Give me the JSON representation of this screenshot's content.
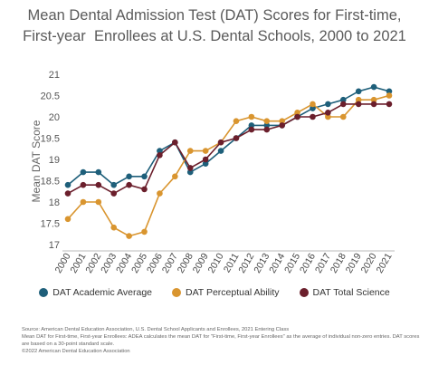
{
  "chart_data": {
    "type": "line",
    "title_lines": [
      "Mean Dental Admission Test (DAT) Scores for First-time,",
      "First-year  Enrollees at U.S. Dental Schools, 2000 to 2021"
    ],
    "xlabel": "",
    "ylabel": "Mean DAT Score",
    "ylim": [
      17,
      21
    ],
    "yticks": [
      "17",
      "17.5",
      "18",
      "18.5",
      "19",
      "19.5",
      "20",
      "20.5",
      "21"
    ],
    "categories": [
      "2000",
      "2001",
      "2002",
      "2003",
      "2004",
      "2005",
      "2006",
      "2007",
      "2008",
      "2009",
      "2010",
      "2011",
      "2012",
      "2013",
      "2014",
      "2015",
      "2016",
      "2017",
      "2018",
      "2019",
      "2020",
      "2021"
    ],
    "grid": false,
    "legend_position": "bottom",
    "series": [
      {
        "name": "DAT Academic Average",
        "color": "#1e5f7a",
        "values": [
          18.4,
          18.7,
          18.7,
          18.4,
          18.6,
          18.6,
          19.2,
          19.4,
          18.7,
          18.9,
          19.2,
          19.5,
          19.8,
          19.8,
          19.8,
          20.0,
          20.2,
          20.3,
          20.4,
          20.6,
          20.7,
          20.6
        ]
      },
      {
        "name": "DAT Perceptual Ability",
        "color": "#d9952f",
        "values": [
          17.6,
          18.0,
          18.0,
          17.4,
          17.2,
          17.3,
          18.2,
          18.6,
          19.2,
          19.2,
          19.4,
          19.9,
          20.0,
          19.9,
          19.9,
          20.1,
          20.3,
          20.0,
          20.0,
          20.4,
          20.4,
          20.5
        ]
      },
      {
        "name": "DAT Total Science",
        "color": "#6b1f2c",
        "values": [
          18.2,
          18.4,
          18.4,
          18.2,
          18.4,
          18.3,
          19.1,
          19.4,
          18.8,
          19.0,
          19.4,
          19.5,
          19.7,
          19.7,
          19.8,
          20.0,
          20.0,
          20.1,
          20.3,
          20.3,
          20.3,
          20.3
        ]
      }
    ]
  },
  "notes": [
    "Source: American Dental Education Association, U.S. Dental School Applicants and Enrollees, 2021 Entering Class",
    "Mean DAT for First-time, First-year Enrollees: ADEA calculates the mean DAT for \"First-time, First-year Enrollees\" as the average of individual non-zero entries. DAT scores are based on a 30-point standard scale.",
    "©2022 American Dental Education Association"
  ]
}
